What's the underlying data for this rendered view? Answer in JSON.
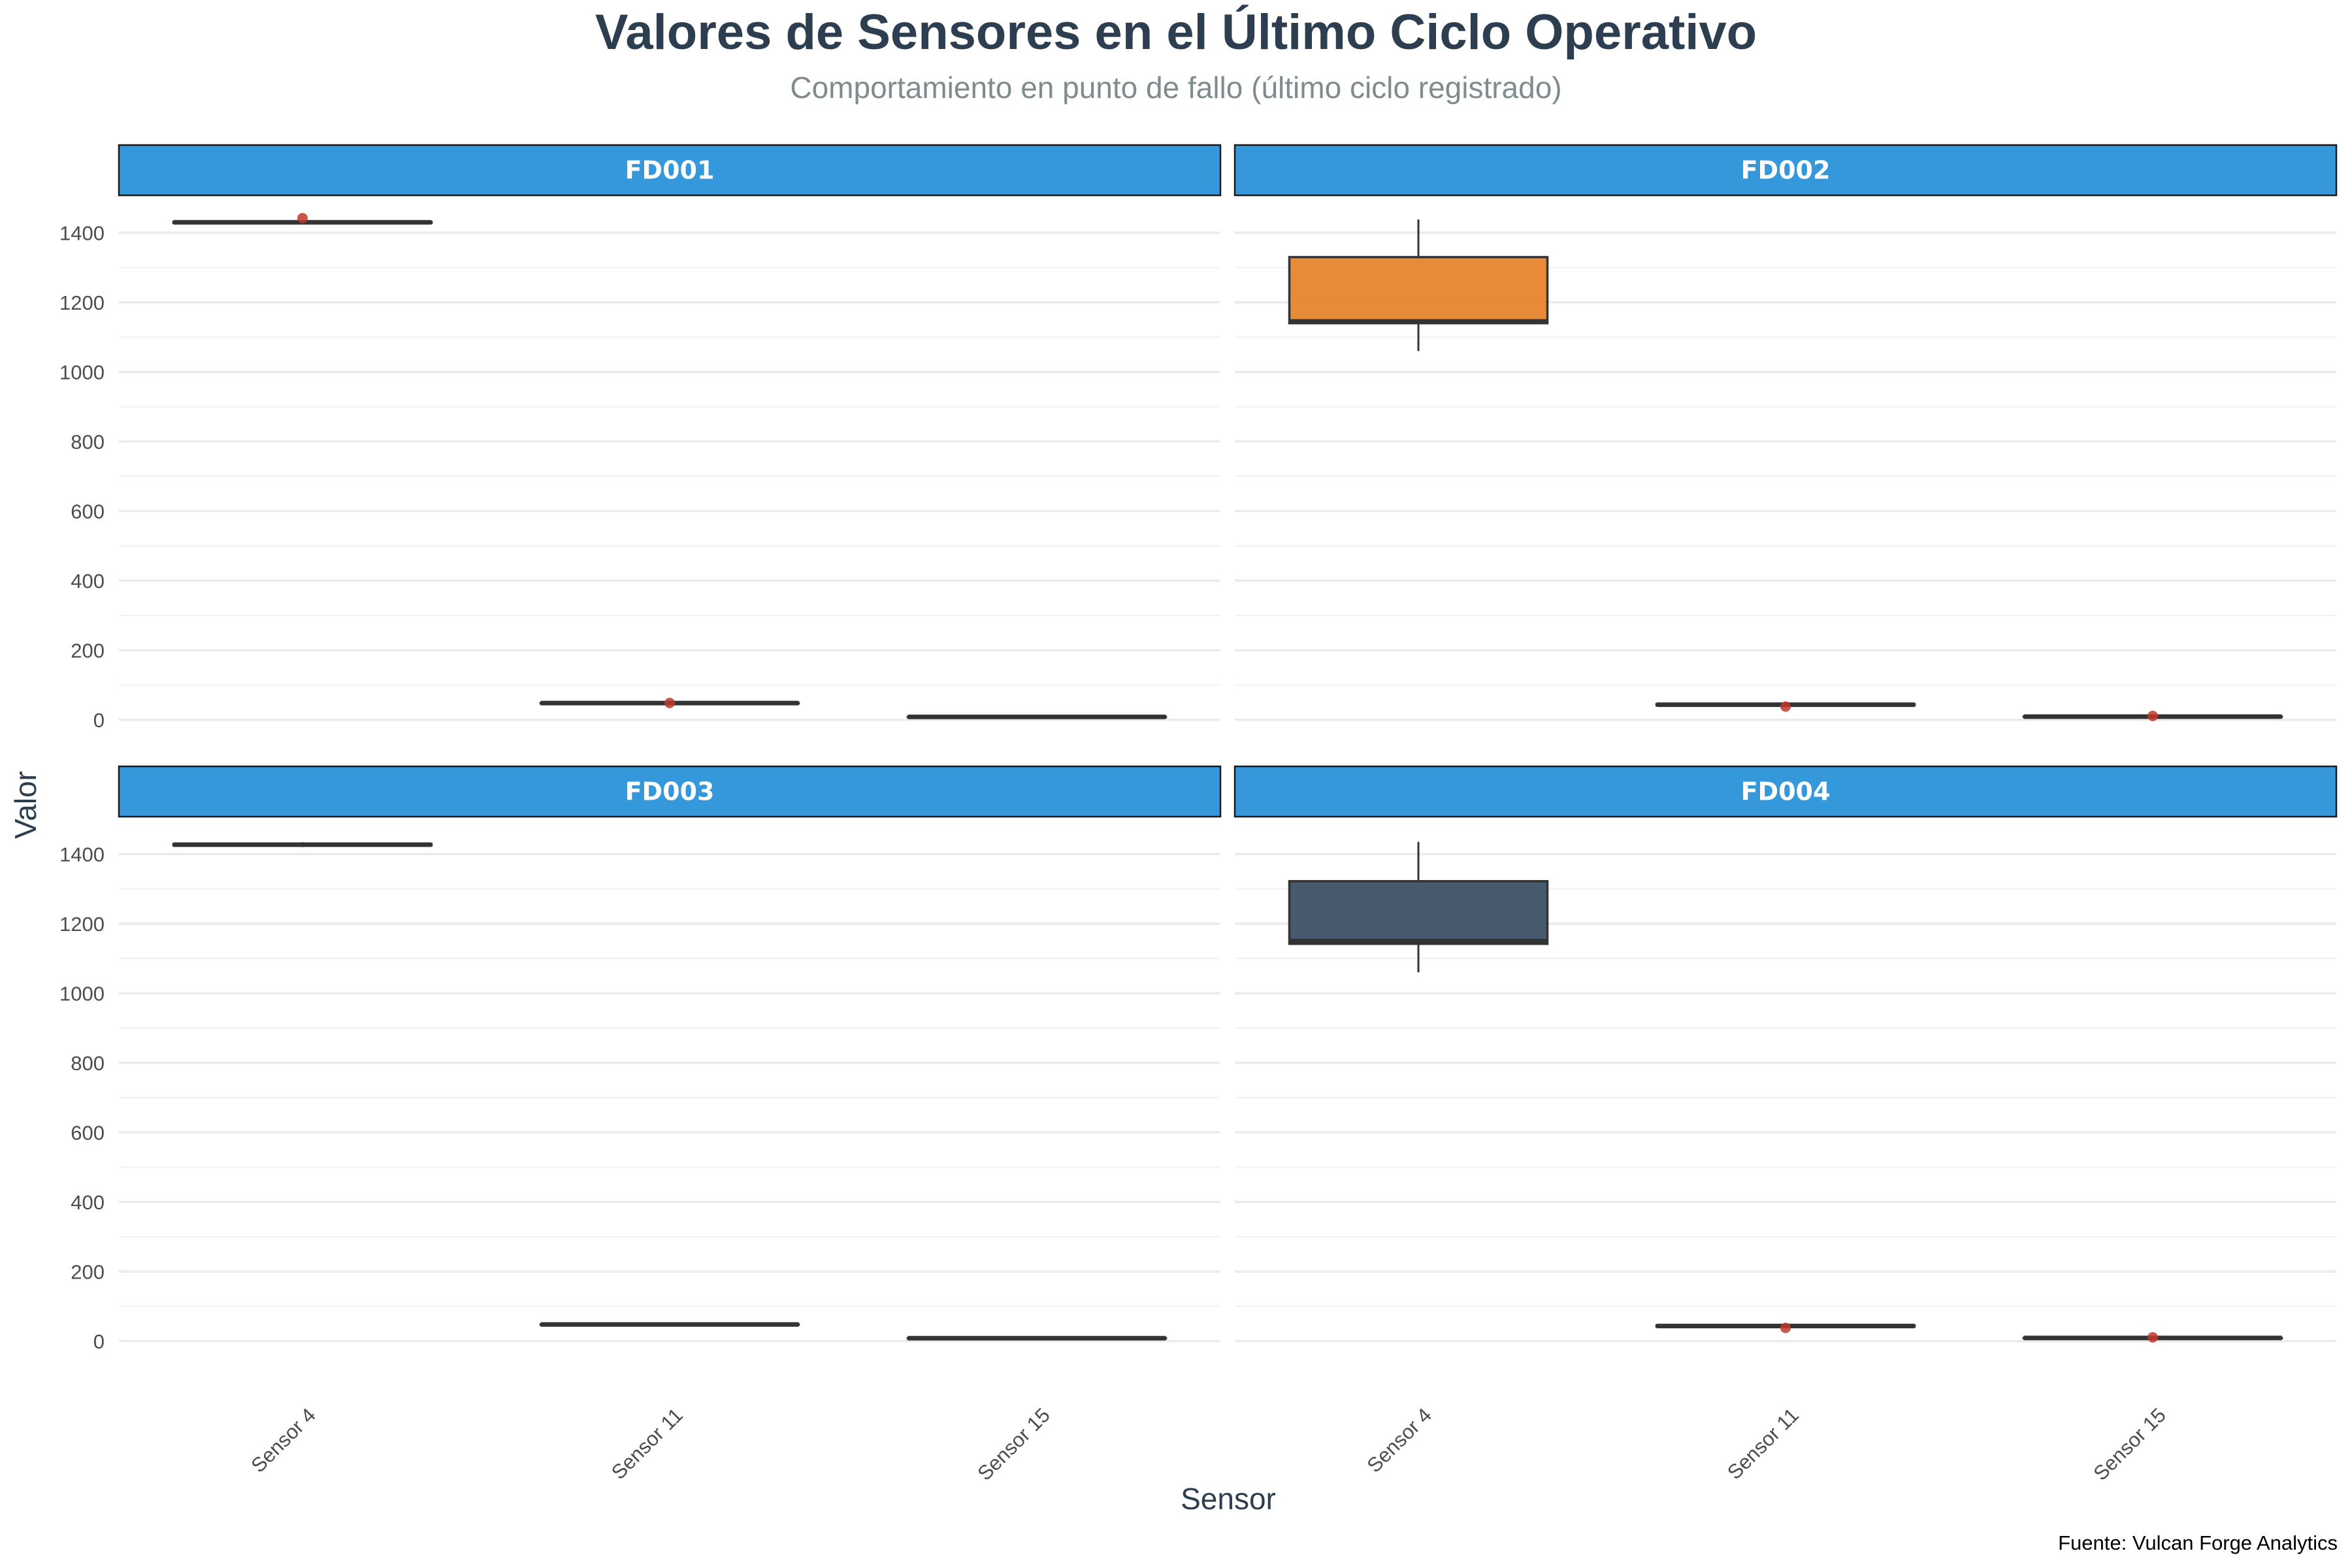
{
  "chart_data": {
    "type": "box",
    "title": "Valores de Sensores en el Último Ciclo Operativo",
    "subtitle": "Comportamiento en punto de fallo (último ciclo registrado)",
    "xlabel": "Sensor",
    "ylabel": "Valor",
    "caption": "Fuente: Vulcan Forge Analytics",
    "categories": [
      "Sensor 4",
      "Sensor 11",
      "Sensor 15"
    ],
    "ylim": [
      -100,
      1500
    ],
    "yticks": [
      0,
      200,
      400,
      600,
      800,
      1000,
      1200,
      1400
    ],
    "grid": true,
    "colors": {
      "strip_bg": "#3498db",
      "box_orange": "#e67e22",
      "box_dark": "#34495e",
      "outlier": "#c0392b",
      "median": "#333333",
      "grid": "#ebebeb"
    },
    "panels": [
      {
        "name": "FD001",
        "box_color": "#e67e22",
        "boxes": [
          {
            "category": "Sensor 4",
            "lower": 1427,
            "q1": 1428,
            "median": 1430,
            "q3": 1431,
            "upper": 1433,
            "outliers": [
              1442
            ]
          },
          {
            "category": "Sensor 11",
            "lower": 47.9,
            "q1": 48.0,
            "median": 48.1,
            "q3": 48.2,
            "upper": 48.3,
            "outliers": [
              48.3
            ]
          },
          {
            "category": "Sensor 15",
            "lower": 8.4,
            "q1": 8.45,
            "median": 8.5,
            "q3": 8.55,
            "upper": 8.6,
            "outliers": []
          }
        ]
      },
      {
        "name": "FD002",
        "box_color": "#e67e22",
        "boxes": [
          {
            "category": "Sensor 4",
            "lower": 1060,
            "q1": 1140,
            "median": 1145,
            "q3": 1330,
            "upper": 1438,
            "outliers": []
          },
          {
            "category": "Sensor 11",
            "lower": 41.5,
            "q1": 42,
            "median": 43.5,
            "q3": 45,
            "upper": 45.5,
            "outliers": [
              38
            ]
          },
          {
            "category": "Sensor 15",
            "lower": 8.5,
            "q1": 8.8,
            "median": 9.1,
            "q3": 9.3,
            "upper": 9.5,
            "outliers": [
              11
            ]
          }
        ]
      },
      {
        "name": "FD003",
        "box_color": "#34495e",
        "boxes": [
          {
            "category": "Sensor 4",
            "lower": 1420,
            "q1": 1425,
            "median": 1427,
            "q3": 1429,
            "upper": 1434,
            "outliers": []
          },
          {
            "category": "Sensor 11",
            "lower": 47.8,
            "q1": 47.9,
            "median": 48.0,
            "q3": 48.1,
            "upper": 48.2,
            "outliers": []
          },
          {
            "category": "Sensor 15",
            "lower": 8.4,
            "q1": 8.45,
            "median": 8.5,
            "q3": 8.55,
            "upper": 8.6,
            "outliers": []
          }
        ]
      },
      {
        "name": "FD004",
        "box_color": "#34495e",
        "boxes": [
          {
            "category": "Sensor 4",
            "lower": 1060,
            "q1": 1142,
            "median": 1150,
            "q3": 1322,
            "upper": 1435,
            "outliers": []
          },
          {
            "category": "Sensor 11",
            "lower": 41.5,
            "q1": 42,
            "median": 43.5,
            "q3": 45,
            "upper": 45.5,
            "outliers": [
              38
            ]
          },
          {
            "category": "Sensor 15",
            "lower": 8.5,
            "q1": 8.8,
            "median": 9.1,
            "q3": 9.3,
            "upper": 9.5,
            "outliers": [
              11
            ]
          }
        ]
      }
    ]
  }
}
